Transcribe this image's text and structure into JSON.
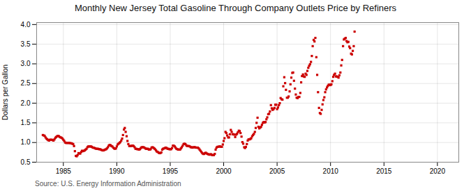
{
  "chart_data": {
    "type": "scatter",
    "title": "Monthly New Jersey Total Gasoline Through Company Outlets Price by Refiners",
    "ylabel": "Dollars per Gallon",
    "annotations": [
      "Source: U.S. Energy Information Administration"
    ],
    "color": "#cc0000",
    "marker": "square",
    "grid": true,
    "xlim": [
      1982.5,
      2022
    ],
    "ylim": [
      0.5,
      4.05
    ],
    "xticks": [
      1985,
      1990,
      1995,
      2000,
      2005,
      2010,
      2015,
      2020
    ],
    "yticks": [
      0.5,
      {
        "value": 1.0,
        "label": "1.0"
      },
      1.5,
      {
        "value": 2.0,
        "label": "2.0"
      },
      2.5,
      {
        "value": 3.0,
        "label": "3.0"
      },
      3.5,
      {
        "value": 4.0,
        "label": "4.0"
      }
    ],
    "x": [
      1983.08,
      1983.17,
      1983.25,
      1983.33,
      1983.42,
      1983.5,
      1983.58,
      1983.67,
      1983.75,
      1983.83,
      1983.92,
      1984.0,
      1984.08,
      1984.17,
      1984.25,
      1984.33,
      1984.42,
      1984.5,
      1984.58,
      1984.67,
      1984.75,
      1984.83,
      1984.92,
      1985.0,
      1985.08,
      1985.17,
      1985.25,
      1985.33,
      1985.42,
      1985.5,
      1985.58,
      1985.67,
      1985.75,
      1985.83,
      1985.92,
      1986.0,
      1986.08,
      1986.17,
      1986.25,
      1986.33,
      1986.42,
      1986.5,
      1986.58,
      1986.67,
      1986.75,
      1986.83,
      1986.92,
      1987.0,
      1987.08,
      1987.17,
      1987.25,
      1987.33,
      1987.42,
      1987.5,
      1987.58,
      1987.67,
      1987.75,
      1987.83,
      1987.92,
      1988.0,
      1988.08,
      1988.17,
      1988.25,
      1988.33,
      1988.42,
      1988.5,
      1988.58,
      1988.67,
      1988.75,
      1988.83,
      1988.92,
      1989.0,
      1989.08,
      1989.17,
      1989.25,
      1989.33,
      1989.42,
      1989.5,
      1989.58,
      1989.67,
      1989.75,
      1989.83,
      1989.92,
      1990.0,
      1990.08,
      1990.17,
      1990.25,
      1990.33,
      1990.42,
      1990.5,
      1990.58,
      1990.67,
      1990.75,
      1990.83,
      1990.92,
      1991.0,
      1991.08,
      1991.17,
      1991.25,
      1991.33,
      1991.42,
      1991.5,
      1991.58,
      1991.67,
      1991.75,
      1991.83,
      1991.92,
      1992.0,
      1992.08,
      1992.17,
      1992.25,
      1992.33,
      1992.42,
      1992.5,
      1992.58,
      1992.67,
      1992.75,
      1992.83,
      1992.92,
      1993.0,
      1993.08,
      1993.17,
      1993.25,
      1993.33,
      1993.42,
      1993.5,
      1993.58,
      1993.67,
      1993.75,
      1993.83,
      1993.92,
      1994.0,
      1994.08,
      1994.17,
      1994.25,
      1994.33,
      1994.42,
      1994.5,
      1994.58,
      1994.67,
      1994.75,
      1994.83,
      1994.92,
      1995.0,
      1995.08,
      1995.17,
      1995.25,
      1995.33,
      1995.42,
      1995.5,
      1995.58,
      1995.67,
      1995.75,
      1995.83,
      1995.92,
      1996.0,
      1996.08,
      1996.17,
      1996.25,
      1996.33,
      1996.42,
      1996.5,
      1996.58,
      1996.67,
      1996.75,
      1996.83,
      1996.92,
      1997.0,
      1997.08,
      1997.17,
      1997.25,
      1997.33,
      1997.42,
      1997.5,
      1997.58,
      1997.67,
      1997.75,
      1997.83,
      1997.92,
      1998.0,
      1998.08,
      1998.17,
      1998.25,
      1998.33,
      1998.42,
      1998.5,
      1998.58,
      1998.67,
      1998.75,
      1998.83,
      1998.92,
      1999.0,
      1999.08,
      1999.17,
      1999.25,
      1999.33,
      1999.42,
      1999.5,
      1999.58,
      1999.67,
      1999.75,
      1999.83,
      1999.92,
      2000.0,
      2000.08,
      2000.17,
      2000.25,
      2000.33,
      2000.42,
      2000.5,
      2000.58,
      2000.67,
      2000.75,
      2000.83,
      2000.92,
      2001.0,
      2001.08,
      2001.17,
      2001.25,
      2001.33,
      2001.42,
      2001.5,
      2001.58,
      2001.67,
      2001.75,
      2001.83,
      2001.92,
      2002.0,
      2002.08,
      2002.17,
      2002.25,
      2002.33,
      2002.42,
      2002.5,
      2002.58,
      2002.67,
      2002.75,
      2002.83,
      2002.92,
      2003.0,
      2003.08,
      2003.17,
      2003.25,
      2003.33,
      2003.42,
      2003.5,
      2003.58,
      2003.67,
      2003.75,
      2003.83,
      2003.92,
      2004.0,
      2004.08,
      2004.17,
      2004.25,
      2004.33,
      2004.42,
      2004.5,
      2004.58,
      2004.67,
      2004.75,
      2004.83,
      2004.92,
      2005.0,
      2005.08,
      2005.17,
      2005.25,
      2005.33,
      2005.42,
      2005.5,
      2005.58,
      2005.67,
      2005.75,
      2005.83,
      2005.92,
      2006.0,
      2006.08,
      2006.17,
      2006.25,
      2006.33,
      2006.42,
      2006.5,
      2006.58,
      2006.67,
      2006.75,
      2006.83,
      2006.92,
      2007.0,
      2007.08,
      2007.17,
      2007.25,
      2007.33,
      2007.42,
      2007.5,
      2007.58,
      2007.67,
      2007.75,
      2007.83,
      2007.92,
      2008.0,
      2008.08,
      2008.17,
      2008.25,
      2008.33,
      2008.42,
      2008.5,
      2008.58,
      2008.67,
      2008.75,
      2008.83,
      2008.92,
      2009.0,
      2009.08,
      2009.17,
      2009.25,
      2009.33,
      2009.42,
      2009.5,
      2009.58,
      2009.67,
      2009.75,
      2009.83,
      2009.92,
      2010.0,
      2010.08,
      2010.17,
      2010.25,
      2010.33,
      2010.42,
      2010.5,
      2010.58,
      2010.67,
      2010.75,
      2010.83,
      2010.92,
      2011.0,
      2011.08,
      2011.17,
      2011.25,
      2011.33,
      2011.42,
      2011.5,
      2011.58,
      2011.67,
      2011.75,
      2011.83,
      2011.92,
      2012.0,
      2012.08,
      2012.17,
      2012.25
    ],
    "values": [
      1.19,
      1.18,
      1.17,
      1.13,
      1.1,
      1.08,
      1.06,
      1.05,
      1.07,
      1.07,
      1.07,
      1.06,
      1.05,
      1.08,
      1.12,
      1.14,
      1.16,
      1.17,
      1.16,
      1.14,
      1.13,
      1.12,
      1.1,
      1.07,
      1.04,
      1.0,
      0.99,
      0.99,
      0.99,
      0.99,
      0.99,
      0.98,
      0.98,
      0.97,
      0.96,
      0.91,
      0.78,
      0.66,
      0.65,
      0.68,
      0.73,
      0.72,
      0.72,
      0.76,
      0.79,
      0.78,
      0.79,
      0.8,
      0.82,
      0.84,
      0.88,
      0.9,
      0.9,
      0.9,
      0.9,
      0.89,
      0.87,
      0.87,
      0.86,
      0.85,
      0.84,
      0.84,
      0.84,
      0.83,
      0.83,
      0.82,
      0.81,
      0.8,
      0.8,
      0.81,
      0.82,
      0.83,
      0.85,
      0.88,
      0.92,
      0.94,
      0.93,
      0.91,
      0.9,
      0.87,
      0.85,
      0.84,
      0.85,
      0.9,
      0.95,
      0.97,
      0.99,
      1.01,
      1.05,
      1.1,
      1.19,
      1.33,
      1.37,
      1.27,
      1.16,
      1.04,
      0.96,
      0.91,
      0.91,
      0.91,
      0.92,
      0.92,
      0.91,
      0.88,
      0.84,
      0.84,
      0.83,
      0.83,
      0.82,
      0.83,
      0.86,
      0.88,
      0.88,
      0.88,
      0.87,
      0.85,
      0.84,
      0.84,
      0.84,
      0.82,
      0.82,
      0.83,
      0.87,
      0.88,
      0.87,
      0.85,
      0.83,
      0.8,
      0.77,
      0.76,
      0.74,
      0.73,
      0.73,
      0.75,
      0.82,
      0.84,
      0.85,
      0.86,
      0.87,
      0.86,
      0.84,
      0.84,
      0.83,
      0.83,
      0.83,
      0.86,
      0.92,
      0.92,
      0.9,
      0.87,
      0.84,
      0.83,
      0.82,
      0.82,
      0.82,
      0.85,
      0.88,
      0.92,
      0.96,
      0.97,
      0.96,
      0.93,
      0.91,
      0.91,
      0.91,
      0.9,
      0.88,
      0.88,
      0.87,
      0.88,
      0.88,
      0.88,
      0.87,
      0.87,
      0.87,
      0.85,
      0.82,
      0.79,
      0.76,
      0.73,
      0.71,
      0.71,
      0.73,
      0.74,
      0.72,
      0.71,
      0.7,
      0.69,
      0.7,
      0.7,
      0.68,
      0.68,
      0.68,
      0.71,
      0.82,
      0.87,
      0.89,
      0.89,
      0.9,
      0.9,
      0.89,
      0.89,
      0.95,
      1.04,
      1.11,
      1.27,
      1.24,
      1.18,
      1.13,
      1.13,
      1.21,
      1.32,
      1.27,
      1.21,
      1.21,
      1.2,
      1.14,
      1.2,
      1.22,
      1.26,
      1.3,
      1.29,
      1.24,
      1.15,
      1.01,
      0.97,
      0.88,
      0.86,
      0.89,
      0.96,
      1.05,
      1.08,
      1.08,
      1.09,
      1.11,
      1.16,
      1.19,
      1.22,
      1.27,
      1.37,
      1.5,
      1.63,
      1.4,
      1.36,
      1.38,
      1.4,
      1.45,
      1.5,
      1.52,
      1.51,
      1.52,
      1.59,
      1.64,
      1.72,
      1.73,
      1.79,
      1.95,
      1.87,
      1.83,
      1.85,
      1.88,
      1.96,
      1.96,
      1.85,
      1.89,
      1.95,
      2.0,
      2.13,
      2.1,
      2.09,
      2.43,
      2.66,
      2.51,
      2.34,
      2.14,
      2.14,
      2.17,
      2.3,
      2.48,
      2.65,
      2.77,
      2.78,
      2.57,
      2.37,
      2.22,
      2.14,
      2.13,
      2.16,
      2.16,
      2.26,
      2.53,
      2.69,
      2.73,
      2.68,
      2.67,
      2.75,
      2.72,
      2.82,
      2.9,
      2.95,
      2.99,
      3.05,
      3.2,
      3.45,
      3.61,
      3.57,
      3.66,
      3.17,
      2.72,
      2.28,
      1.88,
      1.75,
      1.73,
      1.83,
      1.97,
      2.08,
      2.15,
      2.28,
      2.35,
      2.4,
      2.44,
      2.47,
      2.47,
      2.46,
      2.48,
      2.56,
      2.67,
      2.72,
      2.75,
      2.68,
      2.68,
      2.67,
      2.65,
      2.71,
      2.78,
      2.96,
      3.1,
      3.45,
      3.62,
      3.64,
      3.66,
      3.58,
      3.55,
      3.56,
      3.44,
      3.4,
      3.26,
      3.24,
      3.33,
      3.45,
      3.82
    ]
  }
}
